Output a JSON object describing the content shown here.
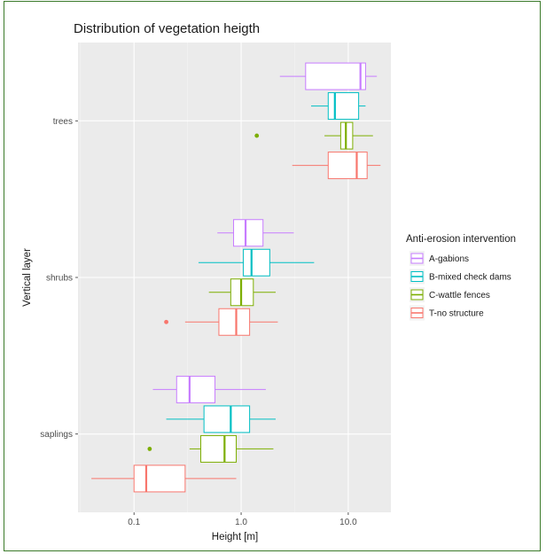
{
  "chart_data": {
    "type": "boxplot",
    "orientation": "horizontal",
    "title": "Distribution of vegetation heigth",
    "xlabel": "Height [m]",
    "ylabel": "Vertical layer",
    "xscale": "log10",
    "xlim": [
      0.03,
      25
    ],
    "xticks": [
      0.1,
      1.0,
      10.0
    ],
    "xtick_labels": [
      "0.1",
      "1.0",
      "10.0"
    ],
    "categories": [
      "trees",
      "shrubs",
      "saplings"
    ],
    "legend": {
      "title": "Anti-erosion intervention",
      "placement": "right"
    },
    "series": [
      {
        "name": "A-gabions",
        "color": "#C77CFF",
        "boxes": [
          {
            "category": "trees",
            "whisker_low": 2.3,
            "q1": 4.0,
            "median": 13.0,
            "q3": 14.5,
            "whisker_high": 18.5,
            "outliers": []
          },
          {
            "category": "shrubs",
            "whisker_low": 0.6,
            "q1": 0.85,
            "median": 1.1,
            "q3": 1.6,
            "whisker_high": 3.1,
            "outliers": []
          },
          {
            "category": "saplings",
            "whisker_low": 0.15,
            "q1": 0.25,
            "median": 0.33,
            "q3": 0.57,
            "whisker_high": 1.7,
            "outliers": []
          }
        ]
      },
      {
        "name": "B-mixed check dams",
        "color": "#00BFC4",
        "boxes": [
          {
            "category": "trees",
            "whisker_low": 4.5,
            "q1": 6.5,
            "median": 7.5,
            "q3": 12.5,
            "whisker_high": 14.5,
            "outliers": []
          },
          {
            "category": "shrubs",
            "whisker_low": 0.4,
            "q1": 1.05,
            "median": 1.25,
            "q3": 1.85,
            "whisker_high": 4.8,
            "outliers": []
          },
          {
            "category": "saplings",
            "whisker_low": 0.2,
            "q1": 0.45,
            "median": 0.8,
            "q3": 1.2,
            "whisker_high": 2.1,
            "outliers": []
          }
        ]
      },
      {
        "name": "C-wattle fences",
        "color": "#7CAE00",
        "boxes": [
          {
            "category": "trees",
            "whisker_low": 6.0,
            "q1": 8.5,
            "median": 9.5,
            "q3": 11.0,
            "whisker_high": 17.0,
            "outliers": [
              1.4
            ]
          },
          {
            "category": "shrubs",
            "whisker_low": 0.5,
            "q1": 0.8,
            "median": 1.0,
            "q3": 1.3,
            "whisker_high": 2.1,
            "outliers": []
          },
          {
            "category": "saplings",
            "whisker_low": 0.33,
            "q1": 0.42,
            "median": 0.7,
            "q3": 0.9,
            "whisker_high": 2.0,
            "outliers": [
              0.14
            ]
          }
        ]
      },
      {
        "name": "T-no structure",
        "color": "#F8766D",
        "boxes": [
          {
            "category": "trees",
            "whisker_low": 3.0,
            "q1": 6.5,
            "median": 12.0,
            "q3": 15.0,
            "whisker_high": 20.0,
            "outliers": []
          },
          {
            "category": "shrubs",
            "whisker_low": 0.3,
            "q1": 0.62,
            "median": 0.9,
            "q3": 1.2,
            "whisker_high": 2.2,
            "outliers": [
              0.2
            ]
          },
          {
            "category": "saplings",
            "whisker_low": 0.04,
            "q1": 0.1,
            "median": 0.13,
            "q3": 0.3,
            "whisker_high": 0.9,
            "outliers": []
          }
        ]
      }
    ]
  }
}
